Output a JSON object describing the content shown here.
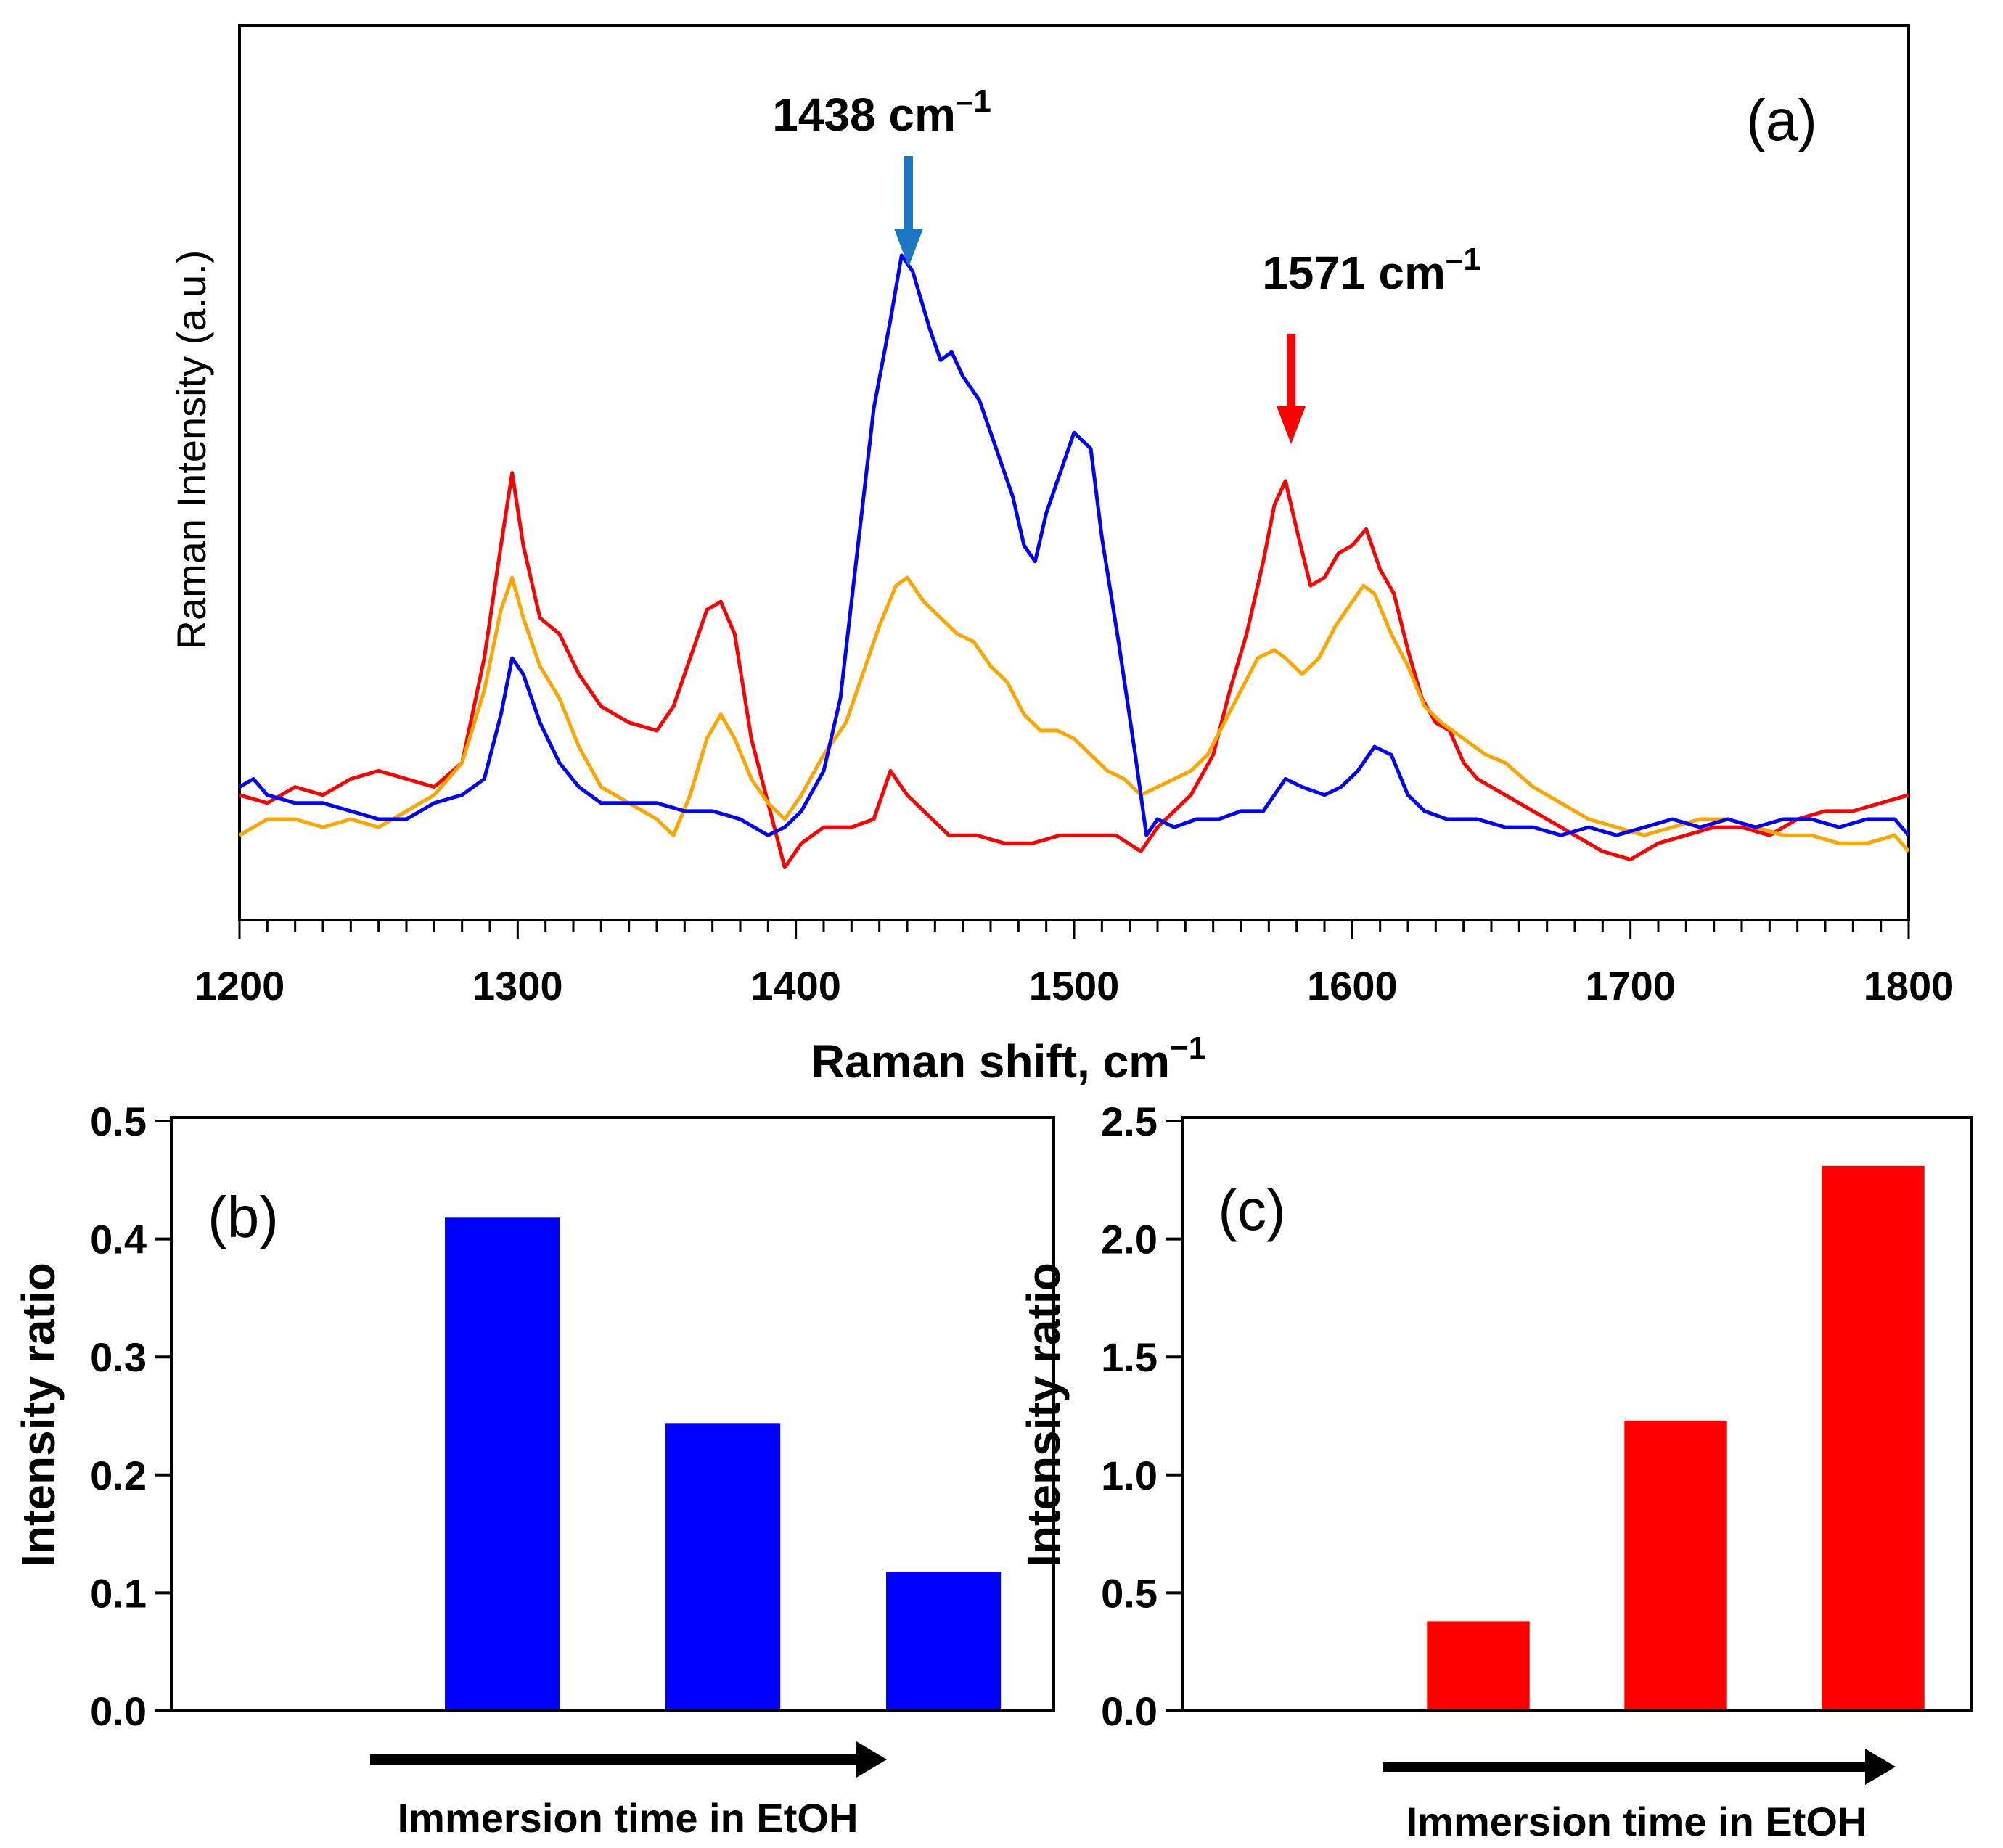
{
  "chart_data": [
    {
      "panel": "(a)",
      "type": "line",
      "title": "",
      "xlabel": "Raman shift, cm",
      "xlabel_sup": "−1",
      "ylabel": "Raman Intensity (a.u.)",
      "xlim": [
        1200,
        1800
      ],
      "ylim": [
        0,
        1.0
      ],
      "xticks": [
        1200,
        1300,
        1400,
        1500,
        1600,
        1700,
        1800
      ],
      "ytick_labels_shown": false,
      "annotations": [
        {
          "label": "1438 cm",
          "sup": "–1",
          "x": 1438,
          "arrow_color": "#1a78c2"
        },
        {
          "label": "1571 cm",
          "sup": "–1",
          "x": 1576,
          "arrow_color": "#ff0000"
        }
      ],
      "series": [
        {
          "name": "red",
          "color": "#ff0000",
          "points": [
            [
              1200,
              0.13
            ],
            [
              1210,
              0.12
            ],
            [
              1220,
              0.14
            ],
            [
              1230,
              0.13
            ],
            [
              1240,
              0.15
            ],
            [
              1250,
              0.16
            ],
            [
              1260,
              0.15
            ],
            [
              1270,
              0.14
            ],
            [
              1280,
              0.17
            ],
            [
              1288,
              0.3
            ],
            [
              1294,
              0.44
            ],
            [
              1298,
              0.53
            ],
            [
              1302,
              0.44
            ],
            [
              1308,
              0.35
            ],
            [
              1315,
              0.33
            ],
            [
              1322,
              0.28
            ],
            [
              1330,
              0.24
            ],
            [
              1340,
              0.22
            ],
            [
              1350,
              0.21
            ],
            [
              1356,
              0.24
            ],
            [
              1362,
              0.3
            ],
            [
              1368,
              0.36
            ],
            [
              1373,
              0.37
            ],
            [
              1378,
              0.33
            ],
            [
              1384,
              0.2
            ],
            [
              1390,
              0.12
            ],
            [
              1396,
              0.04
            ],
            [
              1402,
              0.07
            ],
            [
              1410,
              0.09
            ],
            [
              1420,
              0.09
            ],
            [
              1428,
              0.1
            ],
            [
              1434,
              0.16
            ],
            [
              1440,
              0.13
            ],
            [
              1446,
              0.11
            ],
            [
              1455,
              0.08
            ],
            [
              1465,
              0.08
            ],
            [
              1475,
              0.07
            ],
            [
              1485,
              0.07
            ],
            [
              1495,
              0.08
            ],
            [
              1505,
              0.08
            ],
            [
              1515,
              0.08
            ],
            [
              1524,
              0.06
            ],
            [
              1530,
              0.09
            ],
            [
              1536,
              0.11
            ],
            [
              1542,
              0.13
            ],
            [
              1550,
              0.18
            ],
            [
              1556,
              0.26
            ],
            [
              1562,
              0.33
            ],
            [
              1568,
              0.42
            ],
            [
              1572,
              0.49
            ],
            [
              1576,
              0.52
            ],
            [
              1580,
              0.46
            ],
            [
              1585,
              0.39
            ],
            [
              1590,
              0.4
            ],
            [
              1595,
              0.43
            ],
            [
              1600,
              0.44
            ],
            [
              1605,
              0.46
            ],
            [
              1610,
              0.41
            ],
            [
              1615,
              0.38
            ],
            [
              1620,
              0.31
            ],
            [
              1625,
              0.25
            ],
            [
              1630,
              0.22
            ],
            [
              1635,
              0.21
            ],
            [
              1640,
              0.17
            ],
            [
              1645,
              0.15
            ],
            [
              1650,
              0.14
            ],
            [
              1660,
              0.12
            ],
            [
              1670,
              0.1
            ],
            [
              1680,
              0.08
            ],
            [
              1690,
              0.06
            ],
            [
              1700,
              0.05
            ],
            [
              1710,
              0.07
            ],
            [
              1720,
              0.08
            ],
            [
              1730,
              0.09
            ],
            [
              1740,
              0.09
            ],
            [
              1750,
              0.08
            ],
            [
              1760,
              0.1
            ],
            [
              1770,
              0.11
            ],
            [
              1780,
              0.11
            ],
            [
              1790,
              0.12
            ],
            [
              1800,
              0.13
            ]
          ]
        },
        {
          "name": "orange",
          "color": "#ffa500",
          "points": [
            [
              1200,
              0.08
            ],
            [
              1210,
              0.1
            ],
            [
              1220,
              0.1
            ],
            [
              1230,
              0.09
            ],
            [
              1240,
              0.1
            ],
            [
              1250,
              0.09
            ],
            [
              1260,
              0.11
            ],
            [
              1270,
              0.13
            ],
            [
              1280,
              0.17
            ],
            [
              1288,
              0.26
            ],
            [
              1294,
              0.36
            ],
            [
              1298,
              0.4
            ],
            [
              1302,
              0.35
            ],
            [
              1308,
              0.29
            ],
            [
              1315,
              0.25
            ],
            [
              1322,
              0.19
            ],
            [
              1330,
              0.14
            ],
            [
              1340,
              0.12
            ],
            [
              1350,
              0.1
            ],
            [
              1356,
              0.08
            ],
            [
              1362,
              0.13
            ],
            [
              1368,
              0.2
            ],
            [
              1373,
              0.23
            ],
            [
              1378,
              0.2
            ],
            [
              1384,
              0.15
            ],
            [
              1390,
              0.12
            ],
            [
              1396,
              0.1
            ],
            [
              1402,
              0.13
            ],
            [
              1410,
              0.18
            ],
            [
              1418,
              0.22
            ],
            [
              1424,
              0.28
            ],
            [
              1430,
              0.34
            ],
            [
              1436,
              0.39
            ],
            [
              1440,
              0.4
            ],
            [
              1446,
              0.37
            ],
            [
              1452,
              0.35
            ],
            [
              1458,
              0.33
            ],
            [
              1464,
              0.32
            ],
            [
              1470,
              0.29
            ],
            [
              1476,
              0.27
            ],
            [
              1482,
              0.23
            ],
            [
              1488,
              0.21
            ],
            [
              1494,
              0.21
            ],
            [
              1500,
              0.2
            ],
            [
              1506,
              0.18
            ],
            [
              1512,
              0.16
            ],
            [
              1518,
              0.15
            ],
            [
              1524,
              0.13
            ],
            [
              1530,
              0.14
            ],
            [
              1536,
              0.15
            ],
            [
              1542,
              0.16
            ],
            [
              1548,
              0.18
            ],
            [
              1554,
              0.22
            ],
            [
              1560,
              0.26
            ],
            [
              1566,
              0.3
            ],
            [
              1572,
              0.31
            ],
            [
              1576,
              0.3
            ],
            [
              1582,
              0.28
            ],
            [
              1588,
              0.3
            ],
            [
              1594,
              0.34
            ],
            [
              1600,
              0.37
            ],
            [
              1604,
              0.39
            ],
            [
              1608,
              0.38
            ],
            [
              1614,
              0.33
            ],
            [
              1620,
              0.29
            ],
            [
              1626,
              0.24
            ],
            [
              1632,
              0.22
            ],
            [
              1640,
              0.2
            ],
            [
              1648,
              0.18
            ],
            [
              1655,
              0.17
            ],
            [
              1665,
              0.14
            ],
            [
              1675,
              0.12
            ],
            [
              1685,
              0.1
            ],
            [
              1695,
              0.09
            ],
            [
              1705,
              0.08
            ],
            [
              1715,
              0.09
            ],
            [
              1725,
              0.1
            ],
            [
              1735,
              0.1
            ],
            [
              1745,
              0.09
            ],
            [
              1755,
              0.08
            ],
            [
              1765,
              0.08
            ],
            [
              1775,
              0.07
            ],
            [
              1785,
              0.07
            ],
            [
              1795,
              0.08
            ],
            [
              1800,
              0.06
            ]
          ]
        },
        {
          "name": "blue",
          "color": "#0000ff",
          "points": [
            [
              1200,
              0.14
            ],
            [
              1205,
              0.15
            ],
            [
              1210,
              0.13
            ],
            [
              1220,
              0.12
            ],
            [
              1230,
              0.12
            ],
            [
              1240,
              0.11
            ],
            [
              1250,
              0.1
            ],
            [
              1260,
              0.1
            ],
            [
              1270,
              0.12
            ],
            [
              1280,
              0.13
            ],
            [
              1288,
              0.15
            ],
            [
              1294,
              0.23
            ],
            [
              1298,
              0.3
            ],
            [
              1302,
              0.28
            ],
            [
              1308,
              0.22
            ],
            [
              1315,
              0.17
            ],
            [
              1322,
              0.14
            ],
            [
              1330,
              0.12
            ],
            [
              1340,
              0.12
            ],
            [
              1350,
              0.12
            ],
            [
              1360,
              0.11
            ],
            [
              1370,
              0.11
            ],
            [
              1380,
              0.1
            ],
            [
              1390,
              0.08
            ],
            [
              1396,
              0.09
            ],
            [
              1402,
              0.11
            ],
            [
              1410,
              0.16
            ],
            [
              1416,
              0.25
            ],
            [
              1422,
              0.43
            ],
            [
              1428,
              0.61
            ],
            [
              1434,
              0.72
            ],
            [
              1438,
              0.8
            ],
            [
              1442,
              0.78
            ],
            [
              1448,
              0.71
            ],
            [
              1452,
              0.67
            ],
            [
              1456,
              0.68
            ],
            [
              1460,
              0.65
            ],
            [
              1466,
              0.62
            ],
            [
              1472,
              0.56
            ],
            [
              1478,
              0.5
            ],
            [
              1482,
              0.44
            ],
            [
              1486,
              0.42
            ],
            [
              1490,
              0.48
            ],
            [
              1496,
              0.54
            ],
            [
              1500,
              0.58
            ],
            [
              1506,
              0.56
            ],
            [
              1510,
              0.45
            ],
            [
              1516,
              0.32
            ],
            [
              1522,
              0.18
            ],
            [
              1526,
              0.08
            ],
            [
              1530,
              0.1
            ],
            [
              1536,
              0.09
            ],
            [
              1544,
              0.1
            ],
            [
              1552,
              0.1
            ],
            [
              1560,
              0.11
            ],
            [
              1568,
              0.11
            ],
            [
              1576,
              0.15
            ],
            [
              1582,
              0.14
            ],
            [
              1590,
              0.13
            ],
            [
              1596,
              0.14
            ],
            [
              1602,
              0.16
            ],
            [
              1608,
              0.19
            ],
            [
              1614,
              0.18
            ],
            [
              1620,
              0.13
            ],
            [
              1626,
              0.11
            ],
            [
              1634,
              0.1
            ],
            [
              1645,
              0.1
            ],
            [
              1655,
              0.09
            ],
            [
              1665,
              0.09
            ],
            [
              1675,
              0.08
            ],
            [
              1685,
              0.09
            ],
            [
              1695,
              0.08
            ],
            [
              1705,
              0.09
            ],
            [
              1715,
              0.1
            ],
            [
              1725,
              0.09
            ],
            [
              1735,
              0.1
            ],
            [
              1745,
              0.09
            ],
            [
              1755,
              0.1
            ],
            [
              1765,
              0.1
            ],
            [
              1775,
              0.09
            ],
            [
              1785,
              0.1
            ],
            [
              1795,
              0.1
            ],
            [
              1800,
              0.08
            ]
          ]
        }
      ]
    },
    {
      "panel": "(b)",
      "type": "bar",
      "title": "",
      "xlabel": "Immersion time in EtOH",
      "ylabel": "Intensity ratio",
      "ylim": [
        0,
        0.5
      ],
      "yticks": [
        "0.0",
        "0.1",
        "0.2",
        "0.3",
        "0.4",
        "0.5"
      ],
      "ytick_values": [
        0,
        0.1,
        0.2,
        0.3,
        0.4,
        0.5
      ],
      "categories": [
        "",
        "",
        "",
        ""
      ],
      "values": [
        0,
        0.418,
        0.244,
        0.118
      ],
      "color": "#0000ff"
    },
    {
      "panel": "(c)",
      "type": "bar",
      "title": "",
      "xlabel": "Immersion time in EtOH",
      "ylabel": "Intensity ratio",
      "ylim": [
        0,
        2.5
      ],
      "yticks": [
        "0.0",
        "0.5",
        "1.0",
        "1.5",
        "2.0",
        "2.5"
      ],
      "ytick_values": [
        0,
        0.5,
        1.0,
        1.5,
        2.0,
        2.5
      ],
      "categories": [
        "",
        "",
        "",
        ""
      ],
      "values": [
        0,
        0.38,
        1.23,
        2.31
      ],
      "color": "#ff0000"
    }
  ]
}
